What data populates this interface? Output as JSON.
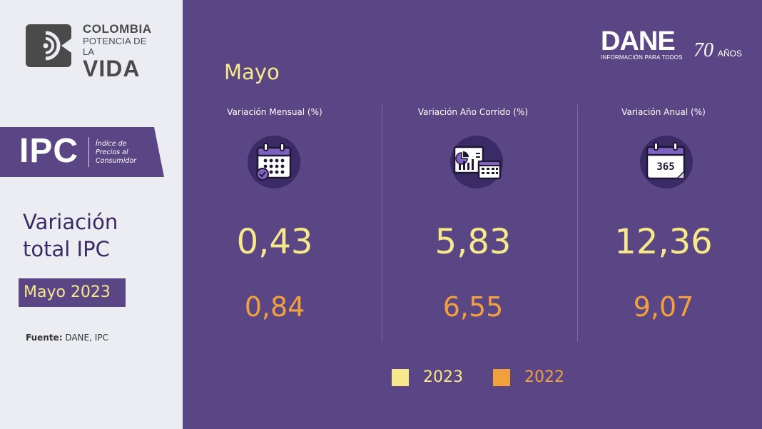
{
  "left_panel": {
    "logo": {
      "line1": "COLOMBIA",
      "line2": "POTENCIA DE LA",
      "line3": "VIDA"
    },
    "ipc_banner": {
      "acronym": "IPC",
      "subtitle_1": "Índice de",
      "subtitle_2": "Precios al",
      "subtitle_3": "Consumidor"
    },
    "title_line1": "Variación",
    "title_line2": "total IPC",
    "period_badge": "Mayo 2023",
    "source_label": "Fuente:",
    "source_value": " DANE, IPC"
  },
  "header": {
    "month": "Mayo",
    "dane_logo": {
      "name": "DANE",
      "tagline": "INFORMACIÓN PARA TODOS",
      "anniversary_number": "70",
      "anniversary_word": "AÑOS"
    }
  },
  "indicators": [
    {
      "title": "Variación Mensual (%)",
      "icon": "calendar-check-icon",
      "value_2023": "0,43",
      "value_2022": "0,84"
    },
    {
      "title": "Variación Año Corrido (%)",
      "icon": "chart-calendar-icon",
      "value_2023": "5,83",
      "value_2022": "6,55"
    },
    {
      "title": "Variación Anual (%)",
      "icon": "calendar-365-icon",
      "value_2023": "12,36",
      "value_2022": "9,07"
    }
  ],
  "legend": [
    {
      "label": "2023",
      "color": "#f7e98a"
    },
    {
      "label": "2022",
      "color": "#f2a03d"
    }
  ],
  "colors": {
    "background_purple": "#5a4684",
    "left_panel": "#ecedf3",
    "highlight_yellow": "#f7e98a",
    "highlight_orange": "#f2a03d"
  }
}
